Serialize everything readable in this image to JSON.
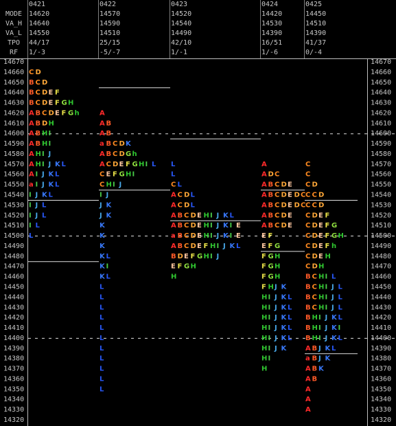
{
  "header_labels": [
    "MODE",
    "VA_H",
    "VA_L",
    "TPO",
    "RF"
  ],
  "prices": [
    14670,
    14660,
    14650,
    14640,
    14630,
    14620,
    14610,
    14600,
    14590,
    14580,
    14570,
    14560,
    14550,
    14540,
    14530,
    14520,
    14510,
    14500,
    14490,
    14480,
    14470,
    14460,
    14450,
    14440,
    14430,
    14420,
    14410,
    14400,
    14390,
    14380,
    14370,
    14360,
    14350,
    14340,
    14330,
    14320
  ],
  "dashed_levels": [
    14600,
    14500,
    14400
  ],
  "letter_colors": {
    "A": "#ff2a2a",
    "B": "#ff5a28",
    "C": "#ff8a20",
    "D": "#ffa838",
    "E": "#ffc8a0",
    "F": "#e8e048",
    "G": "#90e040",
    "H": "#30c830",
    "I": "#48c848",
    "J": "#48a8e8",
    "K": "#3878f8",
    "L": "#2858f8"
  },
  "days": [
    {
      "date": "0421",
      "mode": 14620,
      "va_h": 14640,
      "va_l": 14550,
      "tpo": "44/17",
      "rf": "1/-3",
      "va_lines": [
        14535,
        14475
      ],
      "profile": [
        null,
        "CD",
        "BCD",
        "BCDEF",
        "BCDEFGH",
        "ABCDEFGh",
        "ABDH",
        "ABHI",
        "ABHI",
        "AHIJ",
        "AHIJKL",
        "AIJKL",
        "aIJKL",
        "IJKL",
        "IJL",
        "IJL",
        "IL",
        "L",
        null,
        null,
        null,
        null,
        null,
        null,
        null,
        null,
        null,
        null,
        null,
        null,
        null,
        null,
        null,
        null,
        null,
        null
      ]
    },
    {
      "date": "0422",
      "mode": 14570,
      "va_h": 14590,
      "va_l": 14510,
      "tpo": "25/15",
      "rf": "-5/-7",
      "va_lines": [
        14645,
        14545
      ],
      "profile": [
        null,
        null,
        null,
        null,
        null,
        "A",
        "AB",
        "AB",
        "aBCDK",
        "ABCDGh",
        "ACDEFGHIL",
        "CEFGHI",
        "CHIJ",
        "IJ",
        "JK",
        "JK",
        "K",
        "K",
        "K",
        "KL",
        "KI",
        "KL",
        "L",
        "L",
        "L",
        "L",
        "L",
        "L",
        "L",
        "L",
        "L",
        "L",
        "L",
        null,
        null,
        null
      ]
    },
    {
      "date": "0423",
      "mode": 14520,
      "va_h": 14540,
      "va_l": 14490,
      "tpo": "42/10",
      "rf": "1/-1",
      "va_lines": [
        14595,
        14515
      ],
      "profile": [
        null,
        null,
        null,
        null,
        null,
        null,
        null,
        null,
        null,
        null,
        "L",
        "L",
        "CL",
        "ACDL",
        "ACDL",
        "ABCDEHIJKL",
        "ABCDEHIJKIE",
        "aBCDEHIJKIE",
        "ABCDEFHIJKL",
        "BDEFGHIJ",
        "EFGH",
        "H",
        null,
        null,
        null,
        null,
        null,
        null,
        null,
        null,
        null,
        null,
        null,
        null,
        null,
        null
      ]
    },
    {
      "date": "0424",
      "mode": 14420,
      "va_h": 14530,
      "va_l": 14390,
      "tpo": "16/51",
      "rf": "1/-6",
      "va_lines": [
        14545,
        14485
      ],
      "profile": [
        null,
        null,
        null,
        null,
        null,
        null,
        null,
        null,
        null,
        null,
        "A",
        "ADC",
        "ABCDE",
        "ABCDEDC",
        "ABCDEDC",
        "ABCDE",
        "ABCDE",
        "EF",
        "EFG",
        "FGH",
        "FGH",
        "FGH",
        "FHJK",
        "HIJKL",
        "HIJKL",
        "HIJKL",
        "HIJKL",
        "HIJKL",
        "HIJK",
        "HI",
        "H",
        null,
        null,
        null,
        null,
        null
      ]
    },
    {
      "date": "0425",
      "mode": 14450,
      "va_h": 14510,
      "va_l": 14390,
      "tpo": "41/37",
      "rf": "0/-4",
      "va_lines": [
        14535,
        14385
      ],
      "profile": [
        null,
        null,
        null,
        null,
        null,
        null,
        null,
        null,
        null,
        null,
        "C",
        "C",
        "CD",
        "CCD",
        "CCD",
        "CDEF",
        "CDEFG",
        "CDEFGH",
        "CDEFh",
        "CDEH",
        "CDH",
        "BCHIL",
        "BCHIJL",
        "BCHIJL",
        "BCHIJL",
        "BHIJKL",
        "BHIJKI",
        "BHIJKL",
        "ABJKL",
        "aBJK",
        "ABK",
        "AB",
        "A",
        "A",
        "A",
        null
      ]
    }
  ]
}
